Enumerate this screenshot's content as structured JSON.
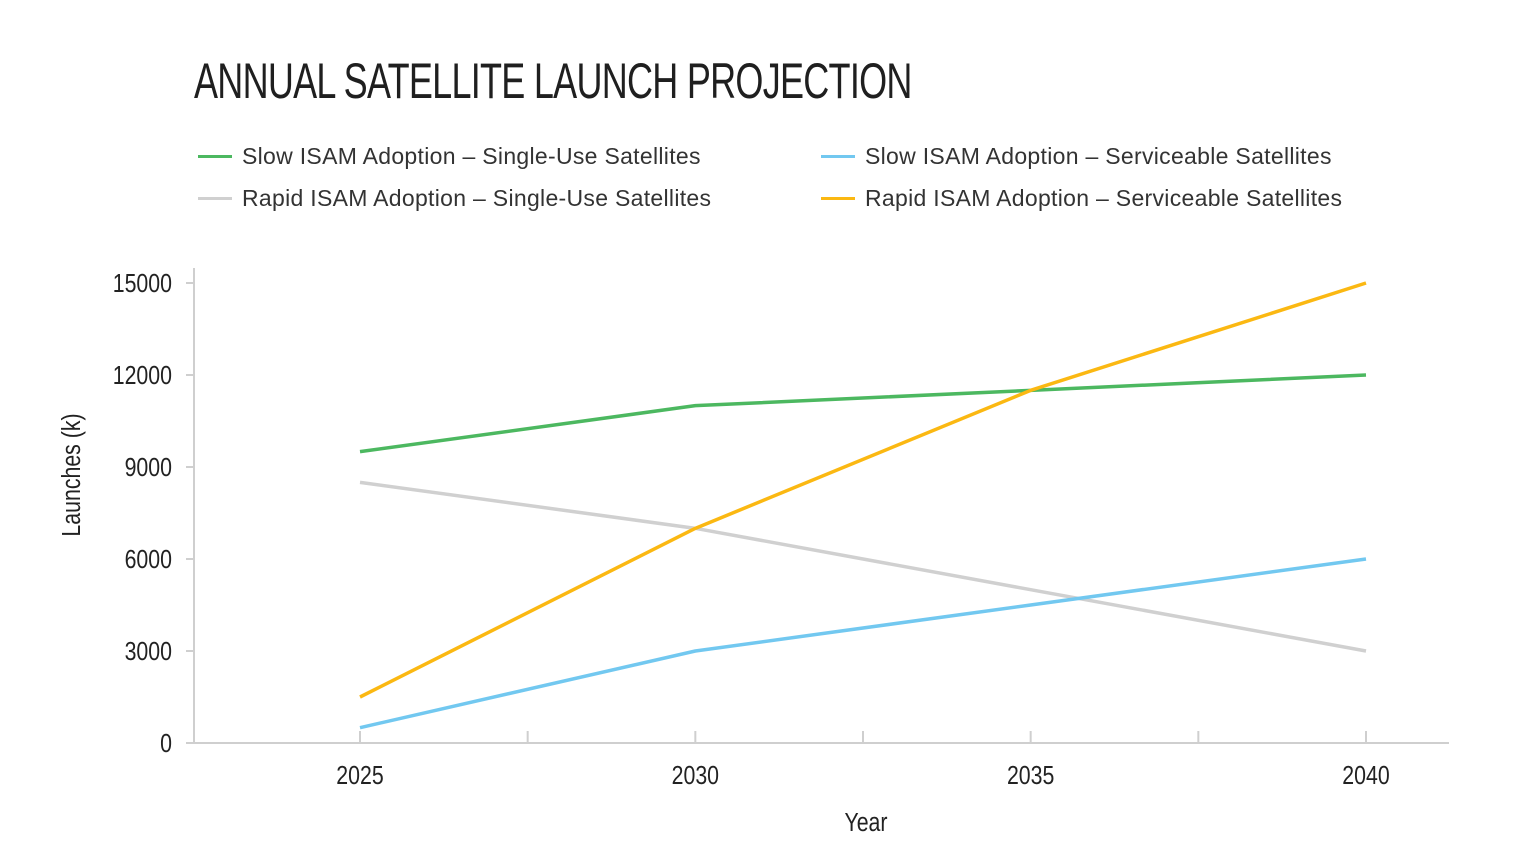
{
  "chart_data": {
    "type": "line",
    "title": "ANNUAL SATELLITE LAUNCH PROJECTION",
    "xlabel": "Year",
    "ylabel": "Launches (k)",
    "x": [
      2025,
      2030,
      2035,
      2040
    ],
    "x_ticks": [
      "2025",
      "2030",
      "2035",
      "2040"
    ],
    "y_ticks": [
      "0",
      "3000",
      "6000",
      "9000",
      "12000",
      "15000"
    ],
    "ylim": [
      0,
      15000
    ],
    "grid": false,
    "legend_placement": "top",
    "series": [
      {
        "name": "Slow ISAM Adoption – Single-Use Satellites",
        "color": "#4cb860",
        "values": [
          9500,
          11000,
          11500,
          12000
        ]
      },
      {
        "name": "Slow ISAM Adoption – Serviceable Satellites",
        "color": "#72c8f0",
        "values": [
          500,
          3000,
          4500,
          6000
        ]
      },
      {
        "name": "Rapid ISAM Adoption – Single-Use Satellites",
        "color": "#d0d0d0",
        "values": [
          8500,
          7000,
          5000,
          3000
        ]
      },
      {
        "name": "Rapid ISAM Adoption – Serviceable Satellites",
        "color": "#fbb812",
        "values": [
          1500,
          7000,
          11500,
          15000
        ]
      }
    ]
  }
}
